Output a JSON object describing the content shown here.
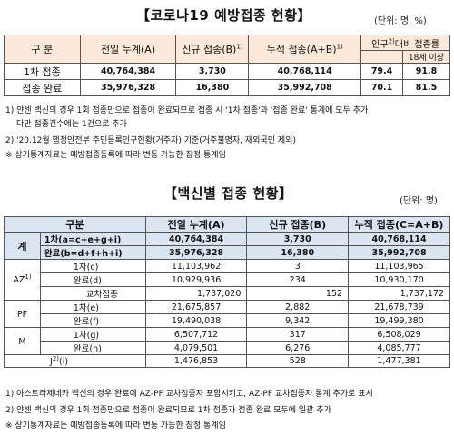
{
  "section1": {
    "title": "【코로나19 예방접종 현황】",
    "unit": "(단위: 명, %)",
    "headers": {
      "category": "구 분",
      "prev_total": "전일 누계(A)",
      "new": "신규 접종(B)",
      "new_sup": "1)",
      "cumulative": "누적 접종(A+B)",
      "cumulative_sup": "1)",
      "ratio_top": "인구",
      "ratio_sup": "2)",
      "ratio_mid": "대비 접종률",
      "ratio_all": "",
      "ratio_18": "18세 이상"
    },
    "rows": [
      {
        "label": "1차 접종",
        "prev": "40,764,384",
        "new": "3,730",
        "cum": "40,768,114",
        "ratio": "79.4",
        "ratio18": "91.8"
      },
      {
        "label": "접종 완료",
        "prev": "35,976,328",
        "new": "16,380",
        "cum": "35,992,708",
        "ratio": "70.1",
        "ratio18": "81.5"
      }
    ],
    "notes": {
      "n1a": "1) 얀센 백신의 경우 1회 접종만으로 접종이 완료되므로 접종 시 '1차 접종'과 '접종 완료' 통계에 모두 추가",
      "n1b": "다만 접종건수에는 1건으로 추가",
      "n2": "2) '20.12월 행정안전부 주민등록인구현황(거주자) 기준(거주불명자, 재외국민 제외)",
      "n3": "※ 상기통계자료는 예방접종등록에 따라 변동 가능한 잠정 통계임"
    }
  },
  "section2": {
    "title": "【백신별 접종 현황】",
    "unit": "(단위: 명)",
    "headers": {
      "category": "구분",
      "prev_total": "전일 누계(A)",
      "new": "신규 접종(B)",
      "cumulative": "누적 접종(C=A+B)"
    },
    "total_label": "계",
    "total_rows": [
      {
        "label": "1차(a=c+e+g+i)",
        "prev": "40,764,384",
        "new": "3,730",
        "cum": "40,768,114"
      },
      {
        "label": "완료(b=d+f+h+i)",
        "prev": "35,976,328",
        "new": "16,380",
        "cum": "35,992,708"
      }
    ],
    "groups": [
      {
        "name": "AZ",
        "sup": "1)",
        "rows": [
          {
            "label": "1차(c)",
            "prev": "11,103,962",
            "new": "3",
            "cum": "11,103,965"
          },
          {
            "label": "완료(d)",
            "prev": "10,929,936",
            "new": "234",
            "cum": "10,930,170"
          }
        ],
        "cross": {
          "label": "교차접종",
          "prev": "1,737,020",
          "new": "152",
          "cum": "1,737,172"
        }
      },
      {
        "name": "PF",
        "sup": "",
        "rows": [
          {
            "label": "1차(e)",
            "prev": "21,675,857",
            "new": "2,882",
            "cum": "21,678,739"
          },
          {
            "label": "완료(f)",
            "prev": "19,490,038",
            "new": "9,342",
            "cum": "19,499,380"
          }
        ]
      },
      {
        "name": "M",
        "sup": "",
        "rows": [
          {
            "label": "1차(g)",
            "prev": "6,507,712",
            "new": "317",
            "cum": "6,508,029"
          },
          {
            "label": "완료(h)",
            "prev": "4,079,501",
            "new": "6,276",
            "cum": "4,085,777"
          }
        ]
      }
    ],
    "janssen": {
      "name": "J",
      "sup": "2)",
      "label": "(i)",
      "prev": "1,476,853",
      "new": "528",
      "cum": "1,477,381"
    },
    "notes": {
      "n1": "1) 아스트라제네카 백신의 경우 완료에 AZ-PF 교차접종자 포함시키고, AZ-PF 교차접종자 통계 추가로 표시",
      "n2": "2) 얀센 백신의 경우 1회 접종만으로 접종이 완료되므로 1차 접종과 접종 완료 모두에 일괄 추가",
      "n3": "※ 상기통계자료는 예방접종등록에 따라 변동 가능한 잠정 통계임"
    }
  }
}
